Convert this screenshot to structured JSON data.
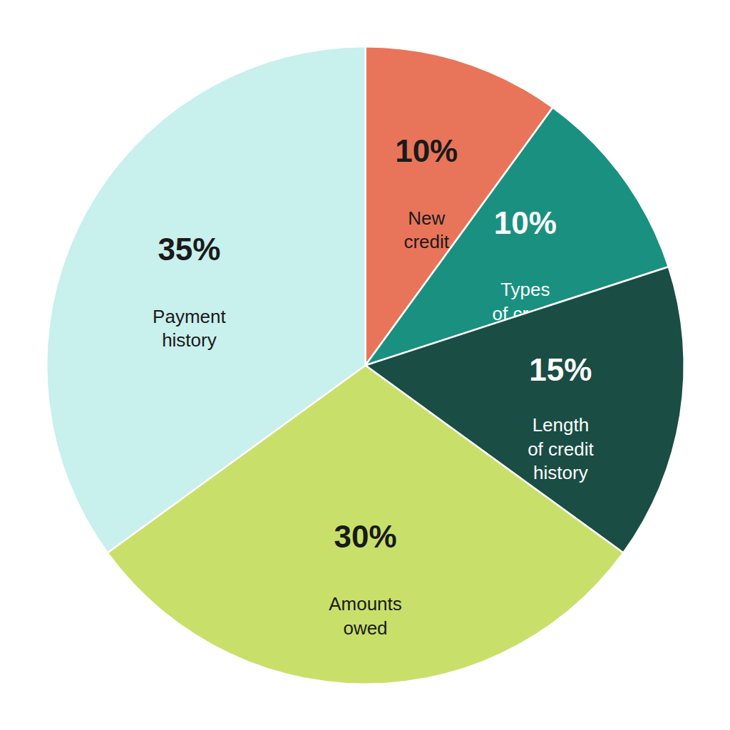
{
  "chart_data": {
    "type": "pie",
    "categories": [
      "New\ncredit",
      "Types\nof credit",
      "Length\nof credit\nhistory",
      "Amounts\nowed",
      "Payment\nhistory"
    ],
    "values": [
      10,
      10,
      15,
      30,
      35
    ],
    "value_labels": [
      "10%",
      "10%",
      "15%",
      "30%",
      "35%"
    ],
    "colors": [
      "#E8755A",
      "#1A9080",
      "#1A4D44",
      "#C8E06A",
      "#C8F0EC"
    ],
    "data_labels": true
  }
}
